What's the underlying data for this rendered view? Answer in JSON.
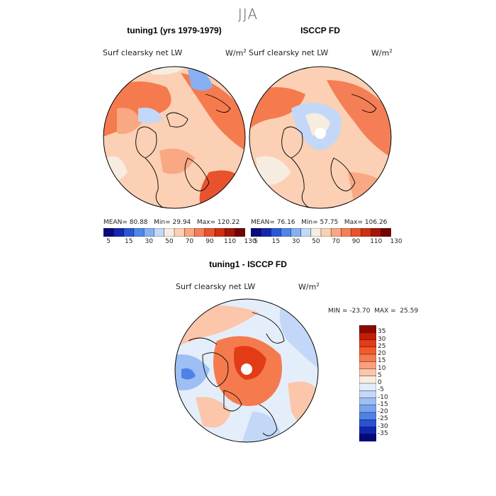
{
  "page": {
    "season_title": "JJA"
  },
  "panels": [
    {
      "title": "tuning1 (yrs 1979-1979)",
      "variable": "Surf clearsky net LW",
      "units": "W/m",
      "units_sup": "2",
      "stats": {
        "mean_label": "MEAN=",
        "mean": "80.88",
        "min_label": "Min=",
        "min": "29.94",
        "max_label": "Max=",
        "max": "120.22"
      }
    },
    {
      "title": "ISCCP FD",
      "variable": "Surf clearsky net LW",
      "units": "W/m",
      "units_sup": "2",
      "stats": {
        "mean_label": "MEAN=",
        "mean": "76.16",
        "min_label": "Min=",
        "min": "57.75",
        "max_label": "Max=",
        "max": "106.26"
      }
    },
    {
      "title": "tuning1 - ISCCP FD",
      "variable": "Surf clearsky net LW",
      "units": "W/m",
      "units_sup": "2",
      "stats": {
        "min_label": "MIN =",
        "min": "-23.70",
        "max_label": "MAX =",
        "max": "25.59"
      }
    }
  ],
  "colorbars": {
    "field": {
      "labels": [
        "5",
        "15",
        "30",
        "50",
        "70",
        "90",
        "110",
        "130"
      ],
      "colors": [
        "#0a0a7c",
        "#1526b0",
        "#2b56d6",
        "#4f86ec",
        "#86b0f2",
        "#c3d8f8",
        "#f7ece0",
        "#fbd0b4",
        "#f8a882",
        "#f47e56",
        "#e8532e",
        "#cf2f12",
        "#a51508",
        "#700404"
      ]
    },
    "diff": {
      "labels": [
        "35",
        "30",
        "25",
        "20",
        "15",
        "10",
        "5",
        "0",
        "-5",
        "-10",
        "-15",
        "-20",
        "-25",
        "-30",
        "-35"
      ],
      "colors": [
        "#8a0a02",
        "#c21d08",
        "#e23c17",
        "#f05a2b",
        "#f57b4e",
        "#f9a07c",
        "#fcc6aa",
        "#fbece0",
        "#e4eefb",
        "#c3d8f8",
        "#9dbff3",
        "#7aa3ee",
        "#4f82e6",
        "#2a52d2",
        "#1326b0",
        "#050a7a"
      ]
    }
  },
  "chart_data": [
    {
      "type": "heatmap",
      "title": "tuning1 (yrs 1979-1979)",
      "variable": "Surf clearsky net LW",
      "units": "W/m2",
      "projection": "north polar stereographic",
      "stats": {
        "mean": 80.88,
        "min": 29.94,
        "max": 120.22
      },
      "levels": [
        5,
        15,
        30,
        50,
        70,
        90,
        110,
        130
      ]
    },
    {
      "type": "heatmap",
      "title": "ISCCP FD",
      "variable": "Surf clearsky net LW",
      "units": "W/m2",
      "projection": "north polar stereographic",
      "stats": {
        "mean": 76.16,
        "min": 57.75,
        "max": 106.26
      },
      "levels": [
        5,
        15,
        30,
        50,
        70,
        90,
        110,
        130
      ]
    },
    {
      "type": "heatmap",
      "title": "tuning1 - ISCCP FD",
      "variable": "Surf clearsky net LW",
      "units": "W/m2",
      "projection": "north polar stereographic",
      "stats": {
        "min": -23.7,
        "max": 25.59
      },
      "levels": [
        -35,
        -30,
        -25,
        -20,
        -15,
        -10,
        -5,
        0,
        5,
        10,
        15,
        20,
        25,
        30,
        35
      ]
    }
  ]
}
